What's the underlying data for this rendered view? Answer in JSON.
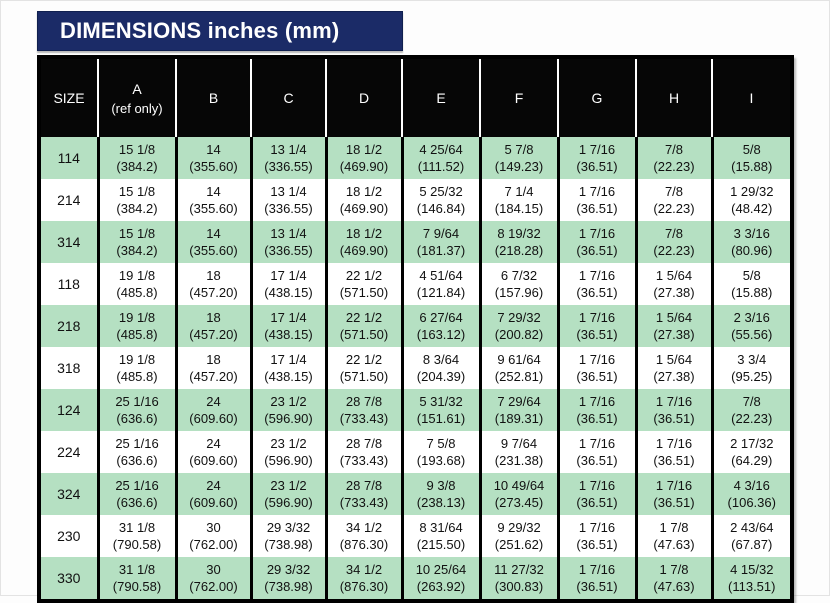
{
  "title": "DIMENSIONS inches (mm)",
  "colors": {
    "title_bar_bg": "#1b2b67",
    "header_bg": "#060606",
    "row_green": "#b5e0c2",
    "row_white": "#ffffff",
    "border_black": "#000000"
  },
  "table": {
    "columns": [
      {
        "label": "SIZE",
        "sub": ""
      },
      {
        "label": "A",
        "sub": "(ref only)"
      },
      {
        "label": "B",
        "sub": ""
      },
      {
        "label": "C",
        "sub": ""
      },
      {
        "label": "D",
        "sub": ""
      },
      {
        "label": "E",
        "sub": ""
      },
      {
        "label": "F",
        "sub": ""
      },
      {
        "label": "G",
        "sub": ""
      },
      {
        "label": "H",
        "sub": ""
      },
      {
        "label": "I",
        "sub": ""
      }
    ],
    "rows": [
      {
        "size": "114",
        "cells": [
          {
            "in": "15 1/8",
            "mm": "(384.2)"
          },
          {
            "in": "14",
            "mm": "(355.60)"
          },
          {
            "in": "13 1/4",
            "mm": "(336.55)"
          },
          {
            "in": "18 1/2",
            "mm": "(469.90)"
          },
          {
            "in": "4 25/64",
            "mm": "(111.52)"
          },
          {
            "in": "5 7/8",
            "mm": "(149.23)"
          },
          {
            "in": "1 7/16",
            "mm": "(36.51)"
          },
          {
            "in": "7/8",
            "mm": "(22.23)"
          },
          {
            "in": "5/8",
            "mm": "(15.88)"
          }
        ]
      },
      {
        "size": "214",
        "cells": [
          {
            "in": "15 1/8",
            "mm": "(384.2)"
          },
          {
            "in": "14",
            "mm": "(355.60)"
          },
          {
            "in": "13 1/4",
            "mm": "(336.55)"
          },
          {
            "in": "18 1/2",
            "mm": "(469.90)"
          },
          {
            "in": "5 25/32",
            "mm": "(146.84)"
          },
          {
            "in": "7 1/4",
            "mm": "(184.15)"
          },
          {
            "in": "1 7/16",
            "mm": "(36.51)"
          },
          {
            "in": "7/8",
            "mm": "(22.23)"
          },
          {
            "in": "1 29/32",
            "mm": "(48.42)"
          }
        ]
      },
      {
        "size": "314",
        "cells": [
          {
            "in": "15 1/8",
            "mm": "(384.2)"
          },
          {
            "in": "14",
            "mm": "(355.60)"
          },
          {
            "in": "13 1/4",
            "mm": "(336.55)"
          },
          {
            "in": "18 1/2",
            "mm": "(469.90)"
          },
          {
            "in": "7 9/64",
            "mm": "(181.37)"
          },
          {
            "in": "8 19/32",
            "mm": "(218.28)"
          },
          {
            "in": "1 7/16",
            "mm": "(36.51)"
          },
          {
            "in": "7/8",
            "mm": "(22.23)"
          },
          {
            "in": "3 3/16",
            "mm": "(80.96)"
          }
        ]
      },
      {
        "size": "118",
        "cells": [
          {
            "in": "19 1/8",
            "mm": "(485.8)"
          },
          {
            "in": "18",
            "mm": "(457.20)"
          },
          {
            "in": "17 1/4",
            "mm": "(438.15)"
          },
          {
            "in": "22 1/2",
            "mm": "(571.50)"
          },
          {
            "in": "4 51/64",
            "mm": "(121.84)"
          },
          {
            "in": "6 7/32",
            "mm": "(157.96)"
          },
          {
            "in": "1 7/16",
            "mm": "(36.51)"
          },
          {
            "in": "1 5/64",
            "mm": "(27.38)"
          },
          {
            "in": "5/8",
            "mm": "(15.88)"
          }
        ]
      },
      {
        "size": "218",
        "cells": [
          {
            "in": "19 1/8",
            "mm": "(485.8)"
          },
          {
            "in": "18",
            "mm": "(457.20)"
          },
          {
            "in": "17 1/4",
            "mm": "(438.15)"
          },
          {
            "in": "22 1/2",
            "mm": "(571.50)"
          },
          {
            "in": "6 27/64",
            "mm": "(163.12)"
          },
          {
            "in": "7 29/32",
            "mm": "(200.82)"
          },
          {
            "in": "1 7/16",
            "mm": "(36.51)"
          },
          {
            "in": "1 5/64",
            "mm": "(27.38)"
          },
          {
            "in": "2 3/16",
            "mm": "(55.56)"
          }
        ]
      },
      {
        "size": "318",
        "cells": [
          {
            "in": "19 1/8",
            "mm": "(485.8)"
          },
          {
            "in": "18",
            "mm": "(457.20)"
          },
          {
            "in": "17 1/4",
            "mm": "(438.15)"
          },
          {
            "in": "22 1/2",
            "mm": "(571.50)"
          },
          {
            "in": "8 3/64",
            "mm": "(204.39)"
          },
          {
            "in": "9 61/64",
            "mm": "(252.81)"
          },
          {
            "in": "1 7/16",
            "mm": "(36.51)"
          },
          {
            "in": "1 5/64",
            "mm": "(27.38)"
          },
          {
            "in": "3 3/4",
            "mm": "(95.25)"
          }
        ]
      },
      {
        "size": "124",
        "cells": [
          {
            "in": "25 1/16",
            "mm": "(636.6)"
          },
          {
            "in": "24",
            "mm": "(609.60)"
          },
          {
            "in": "23 1/2",
            "mm": "(596.90)"
          },
          {
            "in": "28 7/8",
            "mm": "(733.43)"
          },
          {
            "in": "5 31/32",
            "mm": "(151.61)"
          },
          {
            "in": "7 29/64",
            "mm": "(189.31)"
          },
          {
            "in": "1 7/16",
            "mm": "(36.51)"
          },
          {
            "in": "1 7/16",
            "mm": "(36.51)"
          },
          {
            "in": "7/8",
            "mm": "(22.23)"
          }
        ]
      },
      {
        "size": "224",
        "cells": [
          {
            "in": "25 1/16",
            "mm": "(636.6)"
          },
          {
            "in": "24",
            "mm": "(609.60)"
          },
          {
            "in": "23 1/2",
            "mm": "(596.90)"
          },
          {
            "in": "28 7/8",
            "mm": "(733.43)"
          },
          {
            "in": "7 5/8",
            "mm": "(193.68)"
          },
          {
            "in": "9 7/64",
            "mm": "(231.38)"
          },
          {
            "in": "1 7/16",
            "mm": "(36.51)"
          },
          {
            "in": "1 7/16",
            "mm": "(36.51)"
          },
          {
            "in": "2 17/32",
            "mm": "(64.29)"
          }
        ]
      },
      {
        "size": "324",
        "cells": [
          {
            "in": "25 1/16",
            "mm": "(636.6)"
          },
          {
            "in": "24",
            "mm": "(609.60)"
          },
          {
            "in": "23 1/2",
            "mm": "(596.90)"
          },
          {
            "in": "28 7/8",
            "mm": "(733.43)"
          },
          {
            "in": "9 3/8",
            "mm": "(238.13)"
          },
          {
            "in": "10 49/64",
            "mm": "(273.45)"
          },
          {
            "in": "1 7/16",
            "mm": "(36.51)"
          },
          {
            "in": "1 7/16",
            "mm": "(36.51)"
          },
          {
            "in": "4 3/16",
            "mm": "(106.36)"
          }
        ]
      },
      {
        "size": "230",
        "cells": [
          {
            "in": "31 1/8",
            "mm": "(790.58)"
          },
          {
            "in": "30",
            "mm": "(762.00)"
          },
          {
            "in": "29 3/32",
            "mm": "(738.98)"
          },
          {
            "in": "34 1/2",
            "mm": "(876.30)"
          },
          {
            "in": "8 31/64",
            "mm": "(215.50)"
          },
          {
            "in": "9 29/32",
            "mm": "(251.62)"
          },
          {
            "in": "1 7/16",
            "mm": "(36.51)"
          },
          {
            "in": "1 7/8",
            "mm": "(47.63)"
          },
          {
            "in": "2 43/64",
            "mm": "(67.87)"
          }
        ]
      },
      {
        "size": "330",
        "cells": [
          {
            "in": "31 1/8",
            "mm": "(790.58)"
          },
          {
            "in": "30",
            "mm": "(762.00)"
          },
          {
            "in": "29 3/32",
            "mm": "(738.98)"
          },
          {
            "in": "34 1/2",
            "mm": "(876.30)"
          },
          {
            "in": "10 25/64",
            "mm": "(263.92)"
          },
          {
            "in": "11 27/32",
            "mm": "(300.83)"
          },
          {
            "in": "1 7/16",
            "mm": "(36.51)"
          },
          {
            "in": "1 7/8",
            "mm": "(47.63)"
          },
          {
            "in": "4 15/32",
            "mm": "(113.51)"
          }
        ]
      }
    ]
  }
}
